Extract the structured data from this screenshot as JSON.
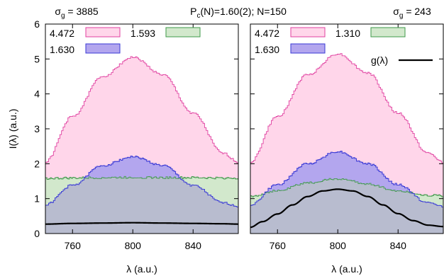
{
  "figure": {
    "center_title_main": "P",
    "center_title_sub": "c",
    "center_title_rest": "(N)=1.60(2); N=150",
    "ylabel": "I(λ) (a.u.)"
  },
  "colors": {
    "pink_fill": "#ffd6ea",
    "pink_line": "#e040a0",
    "blue_fill": "#b3a6ee",
    "blue_line": "#3a3ad6",
    "green_fill": "#d2e8cc",
    "green_line": "#3f9a4a",
    "overlap_fill": "#b9bfc9",
    "curve": "#000000"
  },
  "chart_data": [
    {
      "type": "area",
      "title_main": "σ",
      "title_sub": "g",
      "title_rest": " = 3885",
      "xlabel": "λ (a.u.)",
      "ylabel": "I(λ) (a.u.)",
      "xlim": [
        742,
        870
      ],
      "ylim": [
        0,
        6
      ],
      "xticks": [
        "760",
        "800",
        "840"
      ],
      "yticks": [
        "0",
        "1",
        "2",
        "3",
        "4",
        "5",
        "6"
      ],
      "grid": false,
      "legend_position": "top",
      "series": [
        {
          "name": "4.472",
          "color": "pink",
          "x": [
            742,
            760,
            780,
            800,
            820,
            840,
            860,
            870
          ],
          "y": [
            2.05,
            3.35,
            4.5,
            5.05,
            4.55,
            3.45,
            2.3,
            2.05
          ]
        },
        {
          "name": "1.593",
          "color": "green",
          "x": [
            742,
            760,
            780,
            800,
            820,
            840,
            860,
            870
          ],
          "y": [
            1.58,
            1.59,
            1.6,
            1.61,
            1.6,
            1.6,
            1.59,
            1.59
          ]
        },
        {
          "name": "1.630",
          "color": "blue",
          "x": [
            742,
            760,
            780,
            800,
            820,
            840,
            860,
            870
          ],
          "y": [
            0.82,
            1.38,
            1.95,
            2.2,
            1.95,
            1.38,
            0.88,
            0.78
          ]
        },
        {
          "name": "",
          "color": "curve",
          "x": [
            742,
            760,
            780,
            800,
            820,
            840,
            860,
            870
          ],
          "y": [
            0.27,
            0.29,
            0.3,
            0.31,
            0.3,
            0.29,
            0.28,
            0.27
          ]
        }
      ]
    },
    {
      "type": "area",
      "title_main": "σ",
      "title_sub": "g",
      "title_rest": " = 243",
      "xlabel": "λ (a.u.)",
      "xlim": [
        742,
        870
      ],
      "ylim": [
        0,
        6
      ],
      "xticks": [
        "760",
        "800",
        "840"
      ],
      "grid": false,
      "legend_position": "top",
      "series": [
        {
          "name": "4.472",
          "color": "pink",
          "x": [
            742,
            760,
            780,
            800,
            820,
            840,
            860,
            870
          ],
          "y": [
            2.05,
            3.35,
            4.55,
            5.15,
            4.6,
            3.45,
            2.3,
            2.05
          ]
        },
        {
          "name": "1.310",
          "color": "green",
          "x": [
            742,
            760,
            780,
            800,
            820,
            840,
            860,
            870
          ],
          "y": [
            1.07,
            1.22,
            1.45,
            1.57,
            1.42,
            1.22,
            1.1,
            1.08
          ]
        },
        {
          "name": "1.630",
          "color": "blue",
          "x": [
            742,
            760,
            780,
            800,
            820,
            840,
            860,
            870
          ],
          "y": [
            0.82,
            1.4,
            2.0,
            2.35,
            2.0,
            1.4,
            0.88,
            0.78
          ]
        },
        {
          "name": "g(λ)",
          "color": "curve",
          "x": [
            742,
            750,
            760,
            770,
            780,
            790,
            800,
            810,
            820,
            830,
            840,
            850,
            860,
            870
          ],
          "y": [
            0.18,
            0.34,
            0.56,
            0.82,
            1.06,
            1.22,
            1.27,
            1.22,
            1.06,
            0.82,
            0.57,
            0.37,
            0.24,
            0.2
          ]
        }
      ]
    }
  ]
}
